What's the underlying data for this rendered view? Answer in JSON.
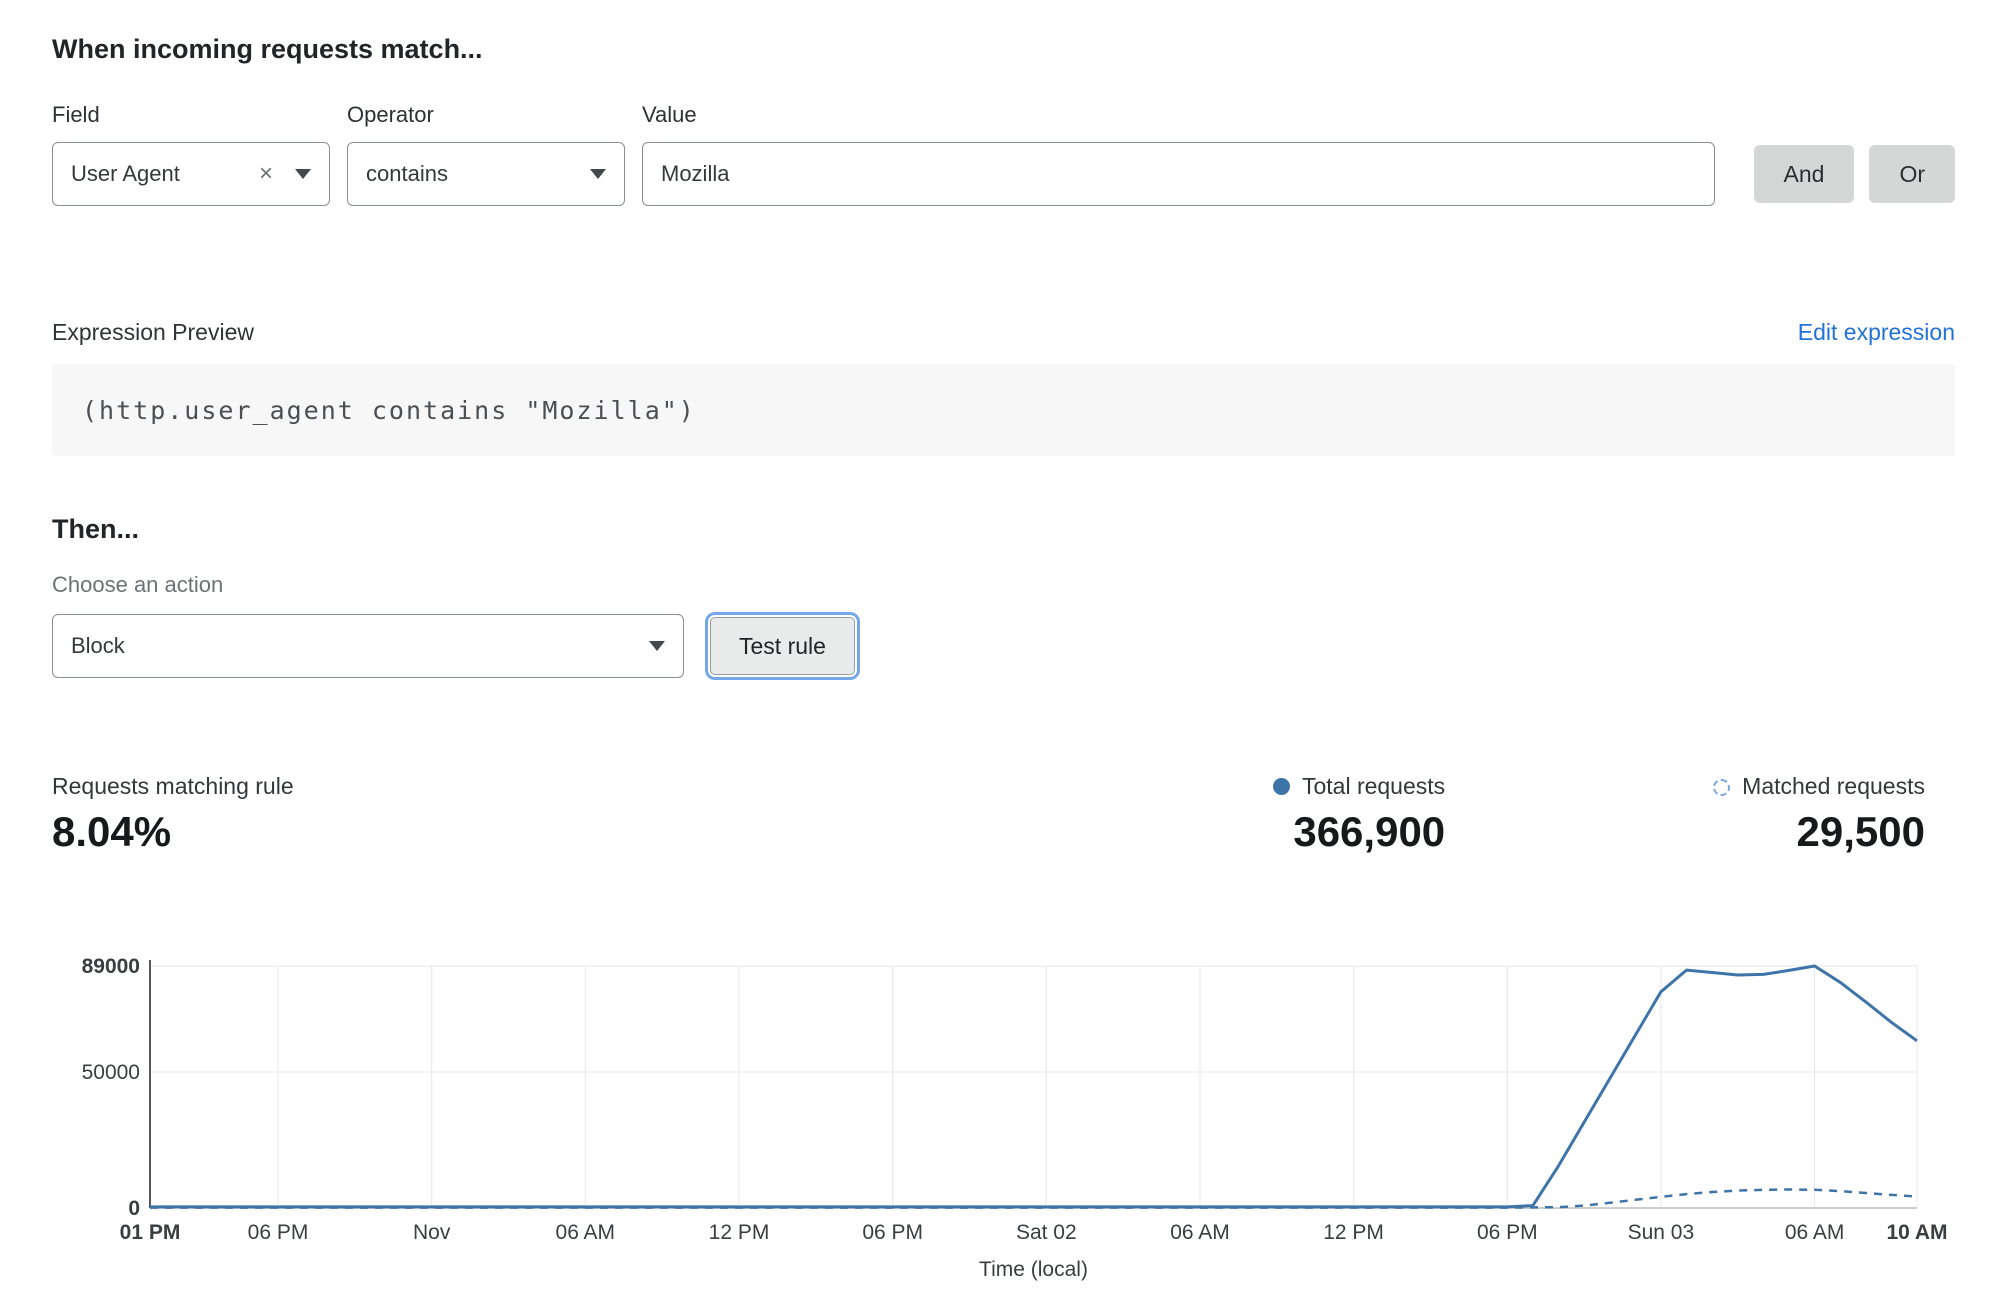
{
  "header": {
    "title": "When incoming requests match..."
  },
  "rule_builder": {
    "field": {
      "label": "Field",
      "value": "User Agent"
    },
    "operator": {
      "label": "Operator",
      "value": "contains"
    },
    "value_field": {
      "label": "Value",
      "value": "Mozilla"
    },
    "and_label": "And",
    "or_label": "Or"
  },
  "expression": {
    "label": "Expression Preview",
    "edit_link": "Edit expression",
    "code": "(http.user_agent contains \"Mozilla\")"
  },
  "action": {
    "heading": "Then...",
    "choose_label": "Choose an action",
    "selected": "Block",
    "test_button": "Test rule"
  },
  "stats": {
    "matching_label": "Requests matching rule",
    "matching_value": "8.04%",
    "total_label": "Total requests",
    "total_value": "366,900",
    "matched_label": "Matched requests",
    "matched_value": "29,500"
  },
  "colors": {
    "line_blue": "#3e74a8",
    "link_blue": "#2272d8",
    "grid_gray": "#e8e8e8"
  },
  "chart_data": {
    "type": "line",
    "xlabel": "Time (local)",
    "ylabel": "",
    "ylim": [
      0,
      89000
    ],
    "xrange": [
      0,
      69
    ],
    "x_unit": "hours since first tick (01 PM)",
    "grid": true,
    "legend_position": "above-right",
    "yticks": [
      {
        "value": 0,
        "label": "0",
        "bold": true
      },
      {
        "value": 50000,
        "label": "50000",
        "bold": false
      },
      {
        "value": 89000,
        "label": "89000",
        "bold": true
      }
    ],
    "xticks": [
      {
        "h": 0,
        "label": "01 PM",
        "bold": true
      },
      {
        "h": 5,
        "label": "06 PM",
        "bold": false
      },
      {
        "h": 11,
        "label": "Nov",
        "bold": false
      },
      {
        "h": 17,
        "label": "06 AM",
        "bold": false
      },
      {
        "h": 23,
        "label": "12 PM",
        "bold": false
      },
      {
        "h": 29,
        "label": "06 PM",
        "bold": false
      },
      {
        "h": 35,
        "label": "Sat 02",
        "bold": false
      },
      {
        "h": 41,
        "label": "06 AM",
        "bold": false
      },
      {
        "h": 47,
        "label": "12 PM",
        "bold": false
      },
      {
        "h": 53,
        "label": "06 PM",
        "bold": false
      },
      {
        "h": 59,
        "label": "Sun 03",
        "bold": false
      },
      {
        "h": 65,
        "label": "06 AM",
        "bold": false
      },
      {
        "h": 69,
        "label": "10 AM",
        "bold": true
      }
    ],
    "series": [
      {
        "name": "Total requests",
        "style": "solid",
        "h": [
          0,
          5,
          11,
          17,
          23,
          29,
          35,
          41,
          47,
          53,
          54,
          55,
          56,
          57,
          58,
          59,
          60,
          61,
          62,
          63,
          64,
          65,
          66,
          67,
          68,
          69
        ],
        "values": [
          400,
          400,
          400,
          400,
          400,
          400,
          400,
          400,
          400,
          400,
          900,
          15500,
          31500,
          47500,
          63500,
          79500,
          87500,
          86600,
          85700,
          85900,
          87400,
          89000,
          83000,
          75800,
          68300,
          61500
        ]
      },
      {
        "name": "Matched requests",
        "style": "dashed",
        "h": [
          0,
          5,
          11,
          17,
          23,
          29,
          35,
          41,
          47,
          53,
          55,
          56,
          57,
          58,
          59,
          60,
          61,
          62,
          63,
          64,
          65,
          66,
          67,
          68,
          69
        ],
        "values": [
          150,
          150,
          150,
          150,
          150,
          150,
          150,
          150,
          150,
          150,
          300,
          900,
          1900,
          3000,
          4100,
          5100,
          5900,
          6400,
          6700,
          6800,
          6700,
          6200,
          5500,
          4800,
          4200
        ]
      }
    ]
  }
}
